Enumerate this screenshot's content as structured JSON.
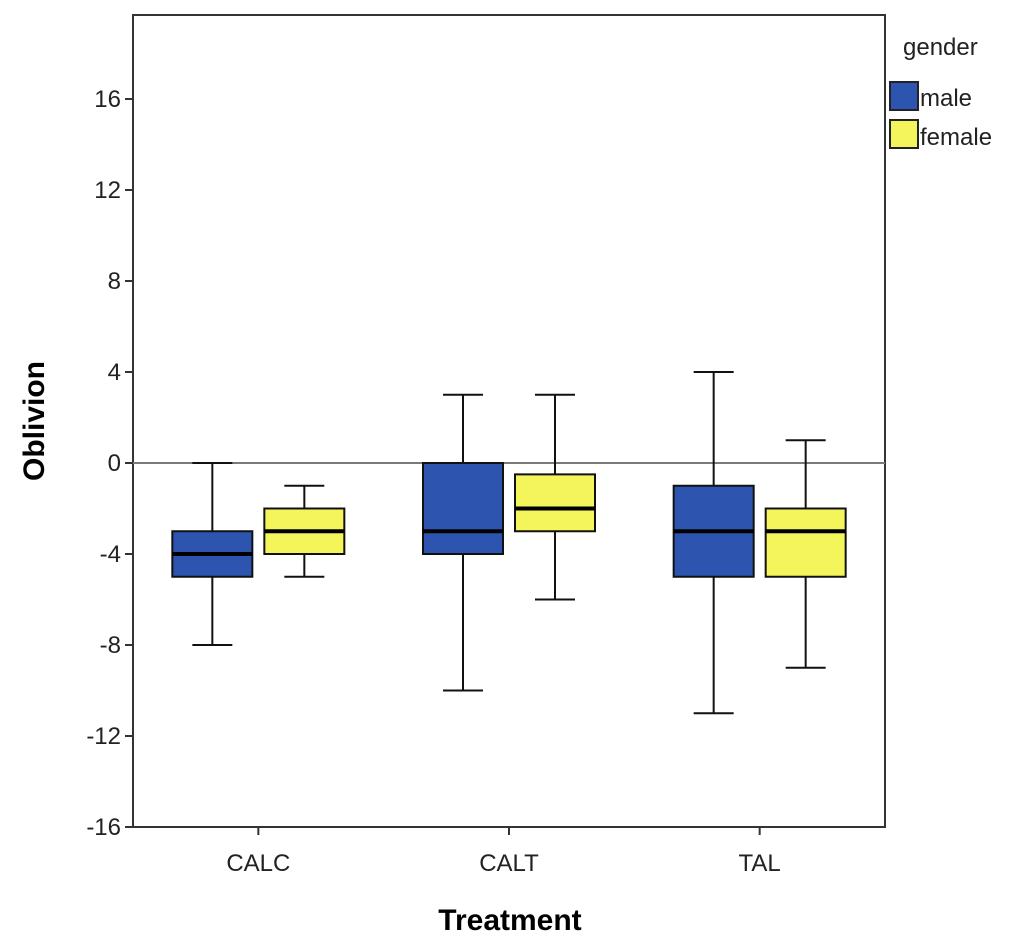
{
  "chart_data": {
    "type": "boxplot",
    "xlabel": "Treatment",
    "ylabel": "Oblivion",
    "ylim": [
      -16,
      20
    ],
    "yticks": [
      -16,
      -12,
      -8,
      -4,
      0,
      4,
      8,
      12,
      16
    ],
    "categories": [
      "CALC",
      "CALT",
      "TAL"
    ],
    "reference_line": 0,
    "legend": {
      "title": "gender",
      "position": "top-right"
    },
    "series": [
      {
        "name": "male",
        "color": "#2d55b0",
        "boxes": [
          {
            "min": -8,
            "q1": -5,
            "median": -4,
            "q3": -3,
            "max": 0
          },
          {
            "min": -10,
            "q1": -4,
            "median": -3,
            "q3": 0,
            "max": 3
          },
          {
            "min": -11,
            "q1": -5,
            "median": -3,
            "q3": -1,
            "max": 4
          }
        ]
      },
      {
        "name": "female",
        "color": "#f4f55a",
        "boxes": [
          {
            "min": -5,
            "q1": -4,
            "median": -3,
            "q3": -2,
            "max": -1
          },
          {
            "min": -6,
            "q1": -3,
            "median": -2,
            "q3": -0.5,
            "max": 3
          },
          {
            "min": -9,
            "q1": -5,
            "median": -3,
            "q3": -2,
            "max": 1
          }
        ]
      }
    ]
  }
}
